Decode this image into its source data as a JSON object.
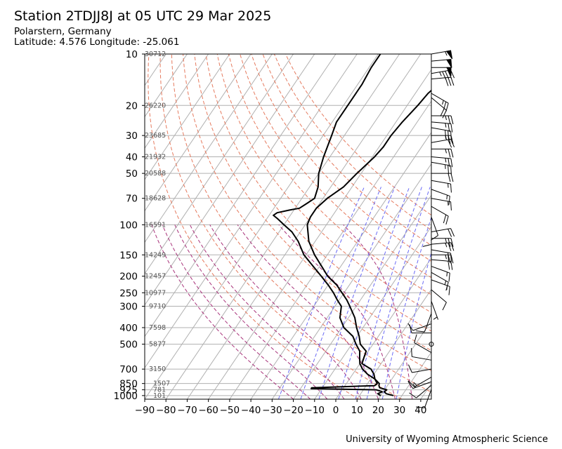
{
  "header": {
    "title": "Station 2TDJJ8J at 05 UTC 29 Mar 2025",
    "location": "Polarstern, Germany",
    "coords": "Latitude: 4.576 Longitude: -25.061"
  },
  "footer": {
    "credit": "University of Wyoming Atmospheric Science"
  },
  "chart_data": {
    "type": "skew-t log-p sounding",
    "title": "Station 2TDJJ8J at 05 UTC 29 Mar 2025",
    "xlabel": "",
    "ylabel": "",
    "x_unit": "°C",
    "y_unit": "hPa",
    "xlim": [
      -90,
      45
    ],
    "ylim": [
      1000,
      10
    ],
    "y_log_scale": true,
    "grid": true,
    "x_ticks": [
      -90,
      -80,
      -70,
      -60,
      -50,
      -40,
      -30,
      -20,
      -10,
      0,
      10,
      20,
      30,
      40
    ],
    "y_ticks": [
      10,
      20,
      30,
      40,
      50,
      70,
      100,
      150,
      200,
      250,
      300,
      400,
      500,
      700,
      850,
      925,
      1000
    ],
    "heights_m": [
      {
        "p": 10,
        "h": "30712"
      },
      {
        "p": 20,
        "h": "26220"
      },
      {
        "p": 30,
        "h": "23685"
      },
      {
        "p": 40,
        "h": "21932"
      },
      {
        "p": 50,
        "h": "20588"
      },
      {
        "p": 70,
        "h": "18628"
      },
      {
        "p": 100,
        "h": "16591"
      },
      {
        "p": 150,
        "h": "14249"
      },
      {
        "p": 200,
        "h": "12457"
      },
      {
        "p": 250,
        "h": "10977"
      },
      {
        "p": 300,
        "h": "9710"
      },
      {
        "p": 400,
        "h": "7598"
      },
      {
        "p": 500,
        "h": "5877"
      },
      {
        "p": 700,
        "h": "3150"
      },
      {
        "p": 850,
        "h": "1507"
      },
      {
        "p": 925,
        "h": "781"
      },
      {
        "p": 1000,
        "h": "101"
      }
    ],
    "temperature": [
      [
        1000,
        26
      ],
      [
        975,
        22
      ],
      [
        950,
        20.5
      ],
      [
        925,
        21
      ],
      [
        900,
        17
      ],
      [
        875,
        16
      ],
      [
        850,
        15.5
      ],
      [
        800,
        12
      ],
      [
        750,
        10
      ],
      [
        700,
        7
      ],
      [
        650,
        1
      ],
      [
        600,
        0
      ],
      [
        550,
        -1
      ],
      [
        500,
        -6
      ],
      [
        450,
        -9
      ],
      [
        400,
        -13
      ],
      [
        350,
        -17
      ],
      [
        300,
        -23
      ],
      [
        275,
        -26.5
      ],
      [
        250,
        -31
      ],
      [
        225,
        -36
      ],
      [
        200,
        -43
      ],
      [
        175,
        -49
      ],
      [
        150,
        -56
      ],
      [
        125,
        -63
      ],
      [
        100,
        -69
      ],
      [
        90,
        -70
      ],
      [
        80,
        -70
      ],
      [
        70,
        -68
      ],
      [
        60,
        -64
      ],
      [
        50,
        -62
      ],
      [
        40,
        -59
      ],
      [
        35,
        -58
      ],
      [
        30,
        -58
      ],
      [
        25,
        -57
      ],
      [
        20,
        -55
      ],
      [
        17,
        -54
      ],
      [
        15,
        -52
      ],
      [
        12,
        -48
      ],
      [
        10,
        -47
      ]
    ],
    "dewpoint": [
      [
        1000,
        20
      ],
      [
        975,
        18
      ],
      [
        950,
        19.5
      ],
      [
        925,
        16
      ],
      [
        910,
        -15
      ],
      [
        900,
        -15
      ],
      [
        875,
        14
      ],
      [
        850,
        14.5
      ],
      [
        800,
        12
      ],
      [
        750,
        7
      ],
      [
        700,
        3
      ],
      [
        650,
        0
      ],
      [
        600,
        -2
      ],
      [
        550,
        -4
      ],
      [
        500,
        -8
      ],
      [
        450,
        -12
      ],
      [
        400,
        -19
      ],
      [
        350,
        -24
      ],
      [
        300,
        -27
      ],
      [
        275,
        -31
      ],
      [
        250,
        -35
      ],
      [
        225,
        -40
      ],
      [
        200,
        -46
      ],
      [
        175,
        -53
      ],
      [
        150,
        -61
      ],
      [
        125,
        -68
      ],
      [
        110,
        -74
      ],
      [
        100,
        -80
      ],
      [
        92,
        -85
      ],
      [
        88,
        -88
      ],
      [
        85,
        -87
      ],
      [
        82,
        -82
      ],
      [
        80,
        -78
      ],
      [
        75,
        -76
      ],
      [
        70,
        -74
      ],
      [
        60,
        -76
      ],
      [
        50,
        -80
      ],
      [
        40,
        -83
      ],
      [
        30,
        -86
      ],
      [
        25,
        -88
      ],
      [
        20,
        -88
      ],
      [
        15,
        -88
      ],
      [
        12,
        -89
      ],
      [
        10,
        -89
      ]
    ],
    "dry_adiabats_theta_K": [
      280,
      300,
      320,
      340,
      360,
      380,
      400,
      420,
      440,
      460,
      480,
      500,
      520
    ],
    "moist_adiabats_start_C": [
      -20,
      -12,
      -4,
      4,
      12,
      20,
      28,
      36
    ],
    "mixing_ratio_lines_gkg": [
      0.4,
      1,
      2,
      4,
      7,
      10,
      16,
      24
    ],
    "wind_barbs": [
      {
        "p": 10,
        "dir": 80,
        "spd": 55
      },
      {
        "p": 11,
        "dir": 85,
        "spd": 50
      },
      {
        "p": 12,
        "dir": 90,
        "spd": 50
      },
      {
        "p": 13,
        "dir": 80,
        "spd": 45
      },
      {
        "p": 14,
        "dir": 85,
        "spd": 30
      },
      {
        "p": 17,
        "dir": 120,
        "spd": 25
      },
      {
        "p": 18,
        "dir": 130,
        "spd": 20
      },
      {
        "p": 23,
        "dir": 90,
        "spd": 25
      },
      {
        "p": 25,
        "dir": 95,
        "spd": 25
      },
      {
        "p": 27,
        "dir": 100,
        "spd": 30
      },
      {
        "p": 30,
        "dir": 90,
        "spd": 25
      },
      {
        "p": 33,
        "dir": 80,
        "spd": 20
      },
      {
        "p": 36,
        "dir": 90,
        "spd": 25
      },
      {
        "p": 40,
        "dir": 95,
        "spd": 25
      },
      {
        "p": 43,
        "dir": 100,
        "spd": 25
      },
      {
        "p": 50,
        "dir": 90,
        "spd": 20
      },
      {
        "p": 55,
        "dir": 100,
        "spd": 15
      },
      {
        "p": 62,
        "dir": 110,
        "spd": 15
      },
      {
        "p": 70,
        "dir": 100,
        "spd": 15
      },
      {
        "p": 78,
        "dir": 120,
        "spd": 20
      },
      {
        "p": 90,
        "dir": 160,
        "spd": 10
      },
      {
        "p": 100,
        "dir": 180,
        "spd": 10
      },
      {
        "p": 110,
        "dir": 80,
        "spd": 20
      },
      {
        "p": 120,
        "dir": 90,
        "spd": 25
      },
      {
        "p": 130,
        "dir": 85,
        "spd": 25
      },
      {
        "p": 140,
        "dir": 100,
        "spd": 20
      },
      {
        "p": 150,
        "dir": 90,
        "spd": 25
      },
      {
        "p": 160,
        "dir": 95,
        "spd": 20
      },
      {
        "p": 175,
        "dir": 110,
        "spd": 15
      },
      {
        "p": 190,
        "dir": 120,
        "spd": 15
      },
      {
        "p": 210,
        "dir": 110,
        "spd": 15
      },
      {
        "p": 240,
        "dir": 130,
        "spd": 10
      },
      {
        "p": 280,
        "dir": 160,
        "spd": 5
      },
      {
        "p": 330,
        "dir": 200,
        "spd": 10
      },
      {
        "p": 380,
        "dir": 250,
        "spd": 10
      },
      {
        "p": 430,
        "dir": 270,
        "spd": 10
      },
      {
        "p": 500,
        "dir": 0,
        "spd": 0
      },
      {
        "p": 560,
        "dir": 300,
        "spd": 10
      },
      {
        "p": 620,
        "dir": 280,
        "spd": 10
      },
      {
        "p": 700,
        "dir": 260,
        "spd": 10
      },
      {
        "p": 780,
        "dir": 240,
        "spd": 15
      },
      {
        "p": 830,
        "dir": 250,
        "spd": 15
      },
      {
        "p": 870,
        "dir": 230,
        "spd": 10
      },
      {
        "p": 920,
        "dir": 200,
        "spd": 10
      }
    ],
    "colors": {
      "profile": "#000000",
      "dry_adiabat": "#e57a5e",
      "moist_adiabat": "#a8327a",
      "mixing_ratio": "#6b6bf5",
      "grid": "#b0b0b0"
    }
  }
}
